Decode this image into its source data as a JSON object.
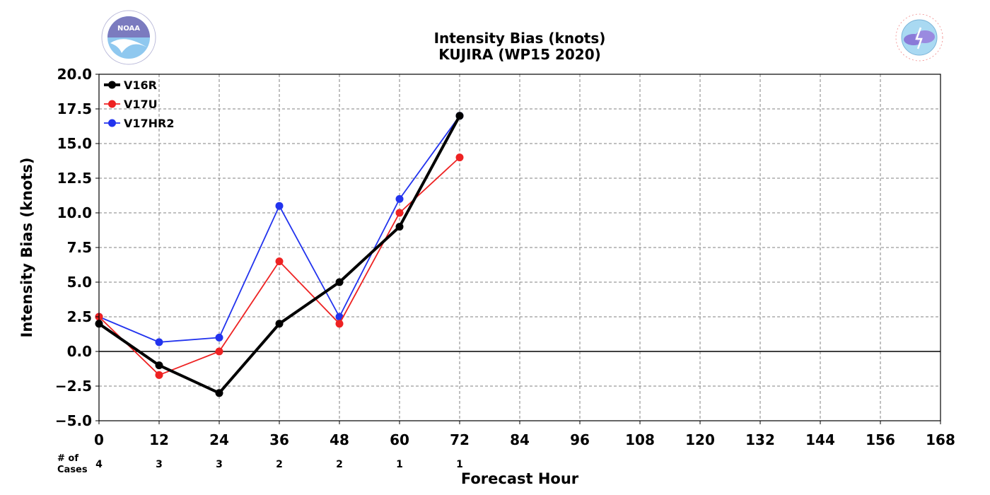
{
  "logos": {
    "left_text": "NOAA",
    "left_ring_text": "NATIONAL OCEANIC AND ATMOSPHERIC ADMINISTRATION · U.S. DEPARTMENT OF COMMERCE",
    "right_ring_text": "NATIONAL WEATHER SERVICE"
  },
  "chart_data": {
    "type": "line",
    "title": "Intensity Bias (knots)",
    "subtitle": "KUJIRA (WP15 2020)",
    "xlabel": "Forecast Hour",
    "ylabel": "Intensity Bias (knots)",
    "xlim": [
      0,
      168
    ],
    "ylim": [
      -5.0,
      20.0
    ],
    "x_ticks": [
      0,
      12,
      24,
      36,
      48,
      60,
      72,
      84,
      96,
      108,
      120,
      132,
      144,
      156,
      168
    ],
    "y_ticks": [
      -5.0,
      -2.5,
      0.0,
      2.5,
      5.0,
      7.5,
      10.0,
      12.5,
      15.0,
      17.5,
      20.0
    ],
    "y_tick_labels": [
      "−5.0",
      "−2.5",
      "0.0",
      "2.5",
      "5.0",
      "7.5",
      "10.0",
      "12.5",
      "15.0",
      "17.5",
      "20.0"
    ],
    "grid": true,
    "legend_position": "top-left",
    "x": [
      0,
      12,
      24,
      36,
      48,
      60,
      72
    ],
    "series": [
      {
        "name": "V16R",
        "color": "#000000",
        "values": [
          2.0,
          -1.0,
          -3.0,
          2.0,
          5.0,
          9.0,
          17.0
        ]
      },
      {
        "name": "V17U",
        "color": "#ee2222",
        "values": [
          2.5,
          -1.7,
          0.0,
          6.5,
          2.0,
          10.0,
          14.0
        ]
      },
      {
        "name": "V17HR2",
        "color": "#2233ee",
        "values": [
          2.5,
          0.67,
          1.0,
          10.5,
          2.5,
          11.0,
          17.0
        ]
      }
    ],
    "cases_label_1": "# of",
    "cases_label_2": "Cases",
    "cases_x": [
      0,
      12,
      24,
      36,
      48,
      60,
      72
    ],
    "cases": [
      4,
      3,
      3,
      2,
      2,
      1,
      1
    ]
  }
}
